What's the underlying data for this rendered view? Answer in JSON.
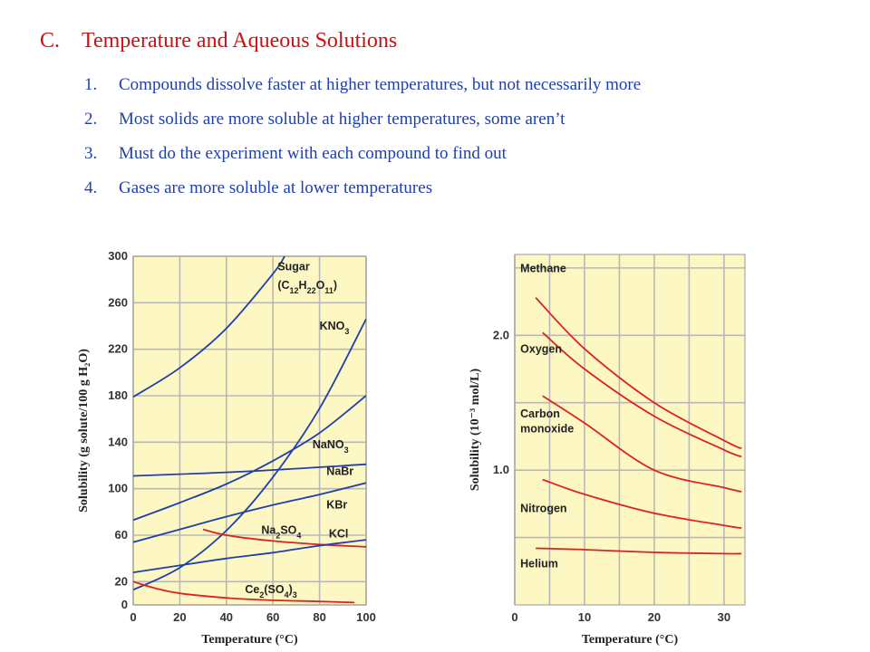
{
  "heading": {
    "number": "C.",
    "text": "Temperature and Aqueous Solutions"
  },
  "points": [
    {
      "number": "1.",
      "text": "Compounds dissolve faster at higher temperatures, but not necessarily more"
    },
    {
      "number": "2.",
      "text": "Most solids are more soluble at higher temperatures, some aren’t"
    },
    {
      "number": "3.",
      "text": "Must do the experiment with each compound to find out"
    },
    {
      "number": "4.",
      "text": "Gases are more soluble at lower temperatures"
    }
  ],
  "chart_data": [
    {
      "type": "line",
      "xlabel": "Temperature (°C)",
      "ylabel": "Solubility (g solute/100 g H₂O)",
      "xlim": [
        0,
        100
      ],
      "ylim": [
        0,
        300
      ],
      "xticks": [
        0,
        20,
        40,
        60,
        80,
        100
      ],
      "yticks": [
        0,
        20,
        60,
        100,
        140,
        180,
        220,
        260,
        300
      ],
      "grid": true,
      "background": "#fdf7c3",
      "line_color": "#1f3fae",
      "alt_line_color": "#dd2222",
      "series": [
        {
          "name": "Sugar (C12H22O11)",
          "color": "#1f3fae",
          "x": [
            0,
            20,
            40,
            60,
            65
          ],
          "y": [
            179,
            204,
            238,
            285,
            300
          ]
        },
        {
          "name": "KNO3",
          "color": "#1f3fae",
          "x": [
            0,
            20,
            40,
            60,
            80,
            100
          ],
          "y": [
            13,
            32,
            64,
            110,
            169,
            246
          ]
        },
        {
          "name": "NaNO3",
          "color": "#1f3fae",
          "x": [
            0,
            20,
            40,
            60,
            80,
            100
          ],
          "y": [
            73,
            88,
            104,
            124,
            148,
            180
          ]
        },
        {
          "name": "NaBr",
          "color": "#1f3fae",
          "x": [
            0,
            50,
            100
          ],
          "y": [
            111,
            115,
            121
          ]
        },
        {
          "name": "KBr",
          "color": "#1f3fae",
          "x": [
            0,
            20,
            40,
            60,
            80,
            100
          ],
          "y": [
            54,
            65,
            76,
            86,
            95,
            105
          ]
        },
        {
          "name": "Na2SO4",
          "color": "#dd2222",
          "x": [
            30,
            40,
            60,
            80,
            100
          ],
          "y": [
            65,
            60,
            55,
            52,
            50
          ]
        },
        {
          "name": "KCl",
          "color": "#1f3fae",
          "x": [
            0,
            20,
            40,
            60,
            80,
            100
          ],
          "y": [
            28,
            34,
            40,
            45,
            51,
            56
          ]
        },
        {
          "name": "Ce2(SO4)3",
          "color": "#dd2222",
          "x": [
            0,
            10,
            20,
            40,
            60,
            80,
            95
          ],
          "y": [
            20,
            14,
            10,
            6,
            4,
            3,
            2
          ]
        }
      ]
    },
    {
      "type": "line",
      "xlabel": "Temperature (°C)",
      "ylabel": "Solubility (10⁻³ mol/L)",
      "xlim": [
        0,
        33
      ],
      "ylim": [
        0,
        2.6
      ],
      "xticks": [
        0,
        10,
        20,
        30
      ],
      "yticks": [
        1.0,
        2.0
      ],
      "grid": true,
      "background": "#fdf7c3",
      "line_color": "#dd2222",
      "series": [
        {
          "name": "Methane",
          "color": "#dd2222",
          "x": [
            3,
            10,
            20,
            30,
            32.5
          ],
          "y": [
            2.28,
            1.9,
            1.5,
            1.22,
            1.16
          ]
        },
        {
          "name": "Oxygen",
          "color": "#dd2222",
          "x": [
            4,
            10,
            20,
            30,
            32.5
          ],
          "y": [
            2.02,
            1.75,
            1.4,
            1.15,
            1.1
          ]
        },
        {
          "name": "Carbon monoxide",
          "color": "#dd2222",
          "x": [
            4,
            10,
            20,
            30,
            32.5
          ],
          "y": [
            1.55,
            1.35,
            1.0,
            0.87,
            0.84
          ]
        },
        {
          "name": "Nitrogen",
          "color": "#dd2222",
          "x": [
            4,
            10,
            20,
            30,
            32.5
          ],
          "y": [
            0.93,
            0.82,
            0.68,
            0.59,
            0.57
          ]
        },
        {
          "name": "Helium",
          "color": "#dd2222",
          "x": [
            3,
            10,
            20,
            30,
            32.5
          ],
          "y": [
            0.42,
            0.41,
            0.39,
            0.38,
            0.38
          ]
        }
      ]
    }
  ]
}
